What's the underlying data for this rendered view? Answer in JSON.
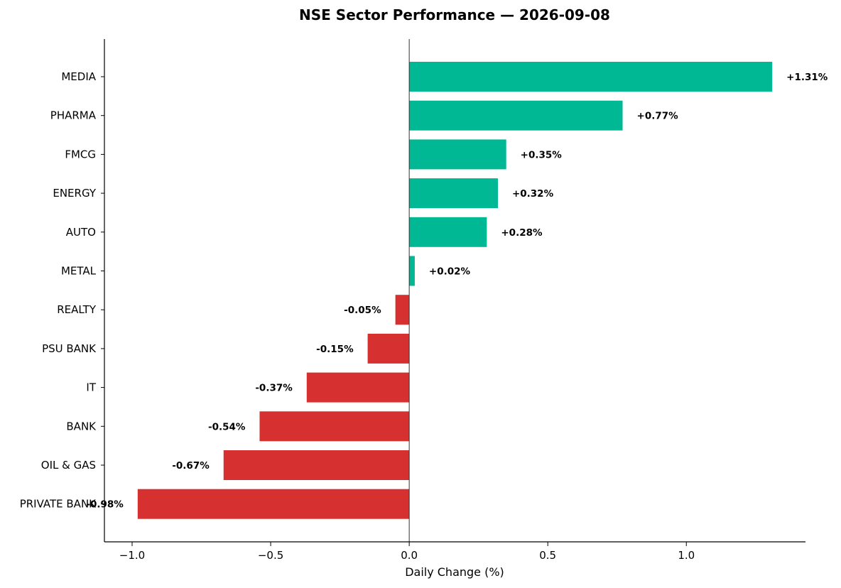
{
  "chart_data": {
    "type": "bar",
    "orientation": "horizontal",
    "title": "NSE Sector Performance — 2026-09-08",
    "xlabel": "Daily Change (%)",
    "ylabel": "",
    "xlim": [
      -1.1,
      1.43
    ],
    "xticks": [
      -1.0,
      -0.5,
      0.0,
      0.5,
      1.0
    ],
    "xtick_labels": [
      "−1.0",
      "−0.5",
      "0.0",
      "0.5",
      "1.0"
    ],
    "grid": false,
    "colors": {
      "positive": "#00b894",
      "negative": "#d63031",
      "zero_line": "#333333",
      "axis": "#000000"
    },
    "categories": [
      "MEDIA",
      "PHARMA",
      "FMCG",
      "ENERGY",
      "AUTO",
      "METAL",
      "REALTY",
      "PSU BANK",
      "IT",
      "BANK",
      "OIL & GAS",
      "PRIVATE BANK"
    ],
    "values": [
      1.31,
      0.77,
      0.35,
      0.32,
      0.28,
      0.02,
      -0.05,
      -0.15,
      -0.37,
      -0.54,
      -0.67,
      -0.98
    ],
    "value_labels": [
      "+1.31%",
      "+0.77%",
      "+0.35%",
      "+0.32%",
      "+0.28%",
      "+0.02%",
      "-0.05%",
      "-0.15%",
      "-0.37%",
      "-0.54%",
      "-0.67%",
      "-0.98%"
    ]
  }
}
